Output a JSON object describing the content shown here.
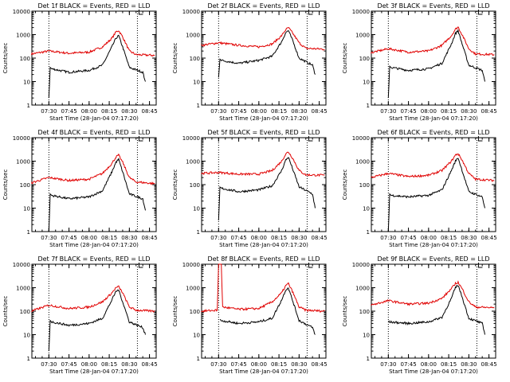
{
  "colors": {
    "events": "#000000",
    "lld": "#e00000",
    "axis": "#000000"
  },
  "chart_data": [
    {
      "type": "line",
      "title": "Det 1f BLACK = Events, RED = LLD",
      "ylabel": "Counts/sec",
      "xlabel": "Start Time (28-Jan-04 07:17:20)",
      "yscale": "log",
      "ylim": [
        1,
        10000
      ],
      "yticks": [
        "1",
        "10",
        "100",
        "1000",
        "10000"
      ],
      "xticks": [
        "07:30",
        "07:45",
        "08:00",
        "08:15",
        "08:30",
        "08:45"
      ],
      "markers": [
        "07:30",
        "08:36"
      ],
      "series": [
        {
          "color": "red",
          "x": [
            "07:17",
            "07:30",
            "07:45",
            "08:00",
            "08:10",
            "08:17",
            "08:20",
            "08:22",
            "08:25",
            "08:30",
            "08:35",
            "08:49"
          ],
          "values": [
            150,
            200,
            160,
            180,
            300,
            700,
            1300,
            1500,
            800,
            200,
            140,
            130
          ]
        },
        {
          "color": "black",
          "x": [
            "07:30",
            "07:31",
            "07:32",
            "07:45",
            "08:00",
            "08:10",
            "08:17",
            "08:20",
            "08:22",
            "08:25",
            "08:30",
            "08:40",
            "08:42"
          ],
          "values": [
            2,
            40,
            35,
            25,
            30,
            50,
            300,
            700,
            900,
            300,
            40,
            25,
            10
          ]
        }
      ]
    },
    {
      "type": "line",
      "title": "Det 2f BLACK = Events, RED = LLD",
      "ylabel": "Counts/sec",
      "xlabel": "Start Time (28-Jan-04 07:17:20)",
      "yscale": "log",
      "ylim": [
        1,
        10000
      ],
      "yticks": [
        "1",
        "10",
        "100",
        "1000",
        "10000"
      ],
      "xticks": [
        "07:30",
        "07:45",
        "08:00",
        "08:15",
        "08:30",
        "08:45"
      ],
      "markers": [
        "07:30",
        "08:36"
      ],
      "series": [
        {
          "color": "red",
          "x": [
            "07:17",
            "07:30",
            "07:45",
            "08:00",
            "08:10",
            "08:17",
            "08:20",
            "08:22",
            "08:25",
            "08:30",
            "08:35",
            "08:49"
          ],
          "values": [
            350,
            450,
            350,
            300,
            400,
            900,
            1600,
            2000,
            1200,
            450,
            260,
            240
          ]
        },
        {
          "color": "black",
          "x": [
            "07:30",
            "07:31",
            "07:32",
            "07:45",
            "08:00",
            "08:10",
            "08:17",
            "08:20",
            "08:22",
            "08:25",
            "08:30",
            "08:40",
            "08:42"
          ],
          "values": [
            15,
            90,
            80,
            60,
            80,
            120,
            500,
            1200,
            1500,
            600,
            100,
            50,
            20
          ]
        }
      ]
    },
    {
      "type": "line",
      "title": "Det 3f BLACK = Events, RED = LLD",
      "ylabel": "Counts/sec",
      "xlabel": "Start Time (28-Jan-04 07:17:20)",
      "yscale": "log",
      "ylim": [
        1,
        10000
      ],
      "yticks": [
        "1",
        "10",
        "100",
        "1000",
        "10000"
      ],
      "xticks": [
        "07:30",
        "07:45",
        "08:00",
        "08:15",
        "08:30",
        "08:45"
      ],
      "markers": [
        "07:30",
        "08:36"
      ],
      "series": [
        {
          "color": "red",
          "x": [
            "07:17",
            "07:30",
            "07:45",
            "08:00",
            "08:10",
            "08:17",
            "08:20",
            "08:22",
            "08:25",
            "08:30",
            "08:35",
            "08:49"
          ],
          "values": [
            170,
            250,
            180,
            200,
            350,
            900,
            1700,
            2100,
            1000,
            250,
            150,
            140
          ]
        },
        {
          "color": "black",
          "x": [
            "07:30",
            "07:31",
            "07:32",
            "07:45",
            "08:00",
            "08:10",
            "08:17",
            "08:20",
            "08:22",
            "08:25",
            "08:30",
            "08:40",
            "08:42"
          ],
          "values": [
            2,
            45,
            40,
            30,
            35,
            60,
            400,
            1100,
            1500,
            400,
            50,
            30,
            10
          ]
        }
      ]
    },
    {
      "type": "line",
      "title": "Det 4f BLACK = Events, RED = LLD",
      "ylabel": "Counts/sec",
      "xlabel": "Start Time (28-Jan-04 07:17:20)",
      "yscale": "log",
      "ylim": [
        1,
        10000
      ],
      "yticks": [
        "1",
        "10",
        "100",
        "1000",
        "10000"
      ],
      "xticks": [
        "07:30",
        "07:45",
        "08:00",
        "08:15",
        "08:30",
        "08:45"
      ],
      "markers": [
        "07:30",
        "08:36"
      ],
      "series": [
        {
          "color": "red",
          "x": [
            "07:17",
            "07:30",
            "07:45",
            "08:00",
            "08:10",
            "08:17",
            "08:20",
            "08:22",
            "08:25",
            "08:30",
            "08:35",
            "08:49"
          ],
          "values": [
            120,
            200,
            150,
            170,
            300,
            800,
            1500,
            1800,
            900,
            200,
            130,
            110
          ]
        },
        {
          "color": "black",
          "x": [
            "07:30",
            "07:31",
            "07:32",
            "07:45",
            "08:00",
            "08:10",
            "08:17",
            "08:20",
            "08:22",
            "08:25",
            "08:30",
            "08:40",
            "08:42"
          ],
          "values": [
            1,
            40,
            35,
            25,
            30,
            55,
            350,
            900,
            1200,
            350,
            40,
            25,
            8
          ]
        }
      ]
    },
    {
      "type": "line",
      "title": "Det 5f BLACK = Events, RED = LLD",
      "ylabel": "Counts/sec",
      "xlabel": "Start Time (28-Jan-04 07:17:20)",
      "yscale": "log",
      "ylim": [
        1,
        10000
      ],
      "yticks": [
        "1",
        "10",
        "100",
        "1000",
        "10000"
      ],
      "xticks": [
        "07:30",
        "07:45",
        "08:00",
        "08:15",
        "08:30",
        "08:45"
      ],
      "markers": [
        "07:30",
        "08:36"
      ],
      "series": [
        {
          "color": "red",
          "x": [
            "07:17",
            "07:30",
            "07:45",
            "08:00",
            "08:10",
            "08:17",
            "08:20",
            "08:22",
            "08:25",
            "08:30",
            "08:35",
            "08:49"
          ],
          "values": [
            300,
            330,
            280,
            280,
            400,
            1000,
            2000,
            2500,
            1400,
            400,
            260,
            250
          ]
        },
        {
          "color": "black",
          "x": [
            "07:30",
            "07:31",
            "07:32",
            "07:45",
            "08:00",
            "08:10",
            "08:17",
            "08:20",
            "08:22",
            "08:25",
            "08:30",
            "08:40",
            "08:42"
          ],
          "values": [
            3,
            80,
            70,
            50,
            60,
            90,
            400,
            1100,
            1500,
            500,
            80,
            40,
            10
          ]
        }
      ]
    },
    {
      "type": "line",
      "title": "Det 6f BLACK = Events, RED = LLD",
      "ylabel": "Counts/sec",
      "xlabel": "Start Time (28-Jan-04 07:17:20)",
      "yscale": "log",
      "ylim": [
        1,
        10000
      ],
      "yticks": [
        "1",
        "10",
        "100",
        "1000",
        "10000"
      ],
      "xticks": [
        "07:30",
        "07:45",
        "08:00",
        "08:15",
        "08:30",
        "08:45"
      ],
      "markers": [
        "07:30",
        "08:36"
      ],
      "series": [
        {
          "color": "red",
          "x": [
            "07:17",
            "07:30",
            "07:45",
            "08:00",
            "08:10",
            "08:17",
            "08:20",
            "08:22",
            "08:25",
            "08:30",
            "08:35",
            "08:49"
          ],
          "values": [
            200,
            300,
            220,
            250,
            400,
            1000,
            1800,
            2100,
            1100,
            300,
            170,
            150
          ]
        },
        {
          "color": "black",
          "x": [
            "07:30",
            "07:31",
            "07:32",
            "07:45",
            "08:00",
            "08:10",
            "08:17",
            "08:20",
            "08:22",
            "08:25",
            "08:30",
            "08:40",
            "08:42"
          ],
          "values": [
            1,
            40,
            35,
            30,
            35,
            60,
            400,
            1000,
            1400,
            400,
            50,
            30,
            10
          ]
        }
      ]
    },
    {
      "type": "line",
      "title": "Det 7f BLACK = Events, RED = LLD",
      "ylabel": "Counts/sec",
      "xlabel": "Start Time (28-Jan-04 07:17:20)",
      "yscale": "log",
      "ylim": [
        1,
        10000
      ],
      "yticks": [
        "1",
        "10",
        "100",
        "1000",
        "10000"
      ],
      "xticks": [
        "07:30",
        "07:45",
        "08:00",
        "08:15",
        "08:30",
        "08:45"
      ],
      "markers": [
        "07:30",
        "08:36"
      ],
      "series": [
        {
          "color": "red",
          "x": [
            "07:17",
            "07:30",
            "07:45",
            "08:00",
            "08:10",
            "08:17",
            "08:20",
            "08:22",
            "08:25",
            "08:30",
            "08:35",
            "08:49"
          ],
          "values": [
            100,
            180,
            130,
            150,
            250,
            600,
            1000,
            1100,
            600,
            150,
            110,
            100
          ]
        },
        {
          "color": "black",
          "x": [
            "07:30",
            "07:31",
            "07:32",
            "07:45",
            "08:00",
            "08:10",
            "08:17",
            "08:20",
            "08:22",
            "08:25",
            "08:30",
            "08:40",
            "08:42"
          ],
          "values": [
            2,
            40,
            35,
            25,
            30,
            50,
            300,
            700,
            800,
            250,
            35,
            20,
            10
          ]
        }
      ]
    },
    {
      "type": "line",
      "title": "Det 8f BLACK = Events, RED = LLD",
      "ylabel": "Counts/sec",
      "xlabel": "Start Time (28-Jan-04 07:17:20)",
      "yscale": "log",
      "ylim": [
        1,
        10000
      ],
      "yticks": [
        "1",
        "10",
        "100",
        "1000",
        "10000"
      ],
      "xticks": [
        "07:30",
        "07:45",
        "08:00",
        "08:15",
        "08:30",
        "08:45"
      ],
      "markers": [
        "07:30",
        "08:36"
      ],
      "series": [
        {
          "color": "red",
          "x": [
            "07:17",
            "07:29",
            "07:30",
            "07:31",
            "07:32",
            "07:33",
            "07:45",
            "08:00",
            "08:10",
            "08:17",
            "08:20",
            "08:22",
            "08:25",
            "08:30",
            "08:35",
            "08:49"
          ],
          "values": [
            100,
            110,
            10000,
            10000,
            10000,
            150,
            120,
            130,
            250,
            600,
            1200,
            1500,
            700,
            150,
            110,
            100
          ]
        },
        {
          "color": "black",
          "x": [
            "07:31",
            "07:32",
            "07:45",
            "08:00",
            "08:10",
            "08:17",
            "08:20",
            "08:22",
            "08:25",
            "08:30",
            "08:40",
            "08:42"
          ],
          "values": [
            45,
            40,
            30,
            35,
            50,
            300,
            800,
            1000,
            300,
            40,
            20,
            10
          ]
        }
      ]
    },
    {
      "type": "line",
      "title": "Det 9f BLACK = Events, RED = LLD",
      "ylabel": "Counts/sec",
      "xlabel": "Start Time (28-Jan-04 07:17:20)",
      "yscale": "log",
      "ylim": [
        1,
        10000
      ],
      "yticks": [
        "1",
        "10",
        "100",
        "1000",
        "10000"
      ],
      "xticks": [
        "07:30",
        "07:45",
        "08:00",
        "08:15",
        "08:30",
        "08:45"
      ],
      "markers": [
        "07:30",
        "08:36"
      ],
      "series": [
        {
          "color": "red",
          "x": [
            "07:17",
            "07:30",
            "07:45",
            "08:00",
            "08:10",
            "08:17",
            "08:20",
            "08:22",
            "08:25",
            "08:30",
            "08:35",
            "08:49"
          ],
          "values": [
            180,
            280,
            200,
            220,
            350,
            900,
            1500,
            1700,
            900,
            250,
            150,
            140
          ]
        },
        {
          "color": "black",
          "x": [
            "07:30",
            "07:45",
            "08:00",
            "08:10",
            "08:17",
            "08:20",
            "08:22",
            "08:25",
            "08:30",
            "08:40",
            "08:42"
          ],
          "values": [
            35,
            30,
            35,
            55,
            350,
            1000,
            1300,
            400,
            50,
            30,
            10
          ]
        }
      ]
    }
  ]
}
